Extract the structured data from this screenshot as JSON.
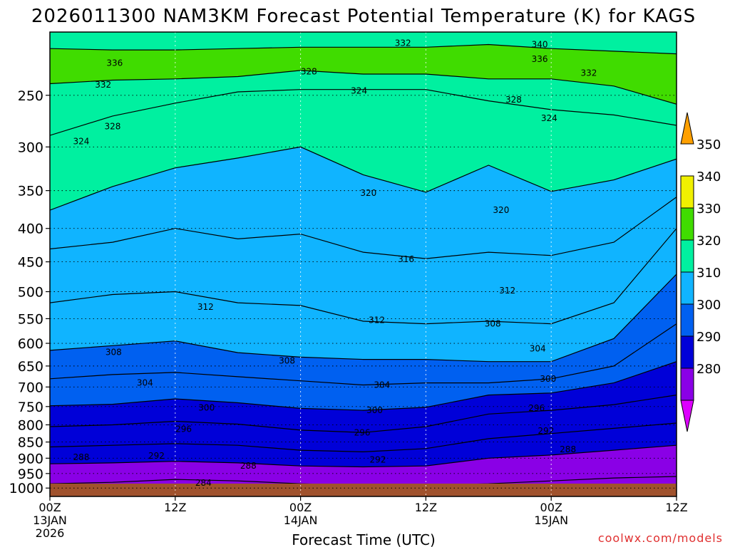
{
  "chart_data": {
    "type": "heatmap",
    "title": "2026011300 NAM3KM Forecast Potential Temperature (K) for KAGS",
    "xlabel": "Forecast Time (UTC)",
    "ylabel": "",
    "credit": "coolwx.com/models",
    "x_range_hours": [
      0,
      60
    ],
    "y_range_hpa": [
      1030,
      200
    ],
    "y_ticks": [
      {
        "p": 250,
        "label": "250"
      },
      {
        "p": 300,
        "label": "300"
      },
      {
        "p": 350,
        "label": "350"
      },
      {
        "p": 400,
        "label": "400"
      },
      {
        "p": 450,
        "label": "450"
      },
      {
        "p": 500,
        "label": "500"
      },
      {
        "p": 550,
        "label": "550"
      },
      {
        "p": 600,
        "label": "600"
      },
      {
        "p": 650,
        "label": "650"
      },
      {
        "p": 700,
        "label": "700"
      },
      {
        "p": 750,
        "label": "750"
      },
      {
        "p": 800,
        "label": "800"
      },
      {
        "p": 850,
        "label": "850"
      },
      {
        "p": 900,
        "label": "900"
      },
      {
        "p": 950,
        "label": "950"
      },
      {
        "p": 1000,
        "label": "1000"
      }
    ],
    "x_ticks": [
      {
        "h": 0,
        "time": "00Z",
        "date": "13JAN",
        "year": "2026"
      },
      {
        "h": 12,
        "time": "12Z",
        "date": "",
        "year": ""
      },
      {
        "h": 24,
        "time": "00Z",
        "date": "14JAN",
        "year": ""
      },
      {
        "h": 36,
        "time": "12Z",
        "date": "",
        "year": ""
      },
      {
        "h": 48,
        "time": "00Z",
        "date": "15JAN",
        "year": ""
      },
      {
        "h": 60,
        "time": "12Z",
        "date": "",
        "year": ""
      }
    ],
    "colorbar": {
      "labels": [
        "280",
        "290",
        "300",
        "310",
        "320",
        "330",
        "340",
        "350"
      ],
      "colors": [
        "#dd00ff",
        "#8a00e6",
        "#0000d8",
        "#0060f0",
        "#10b4ff",
        "#00f0a0",
        "#40dc00",
        "#f0f000",
        "#ffa000"
      ]
    },
    "ground_color": "#a0522d",
    "series": [
      {
        "theta": 332,
        "p": [
          [
            0,
            212
          ],
          [
            6,
            213
          ],
          [
            12,
            213
          ],
          [
            18,
            212
          ],
          [
            24,
            211
          ],
          [
            30,
            211
          ],
          [
            36,
            211
          ],
          [
            42,
            209
          ],
          [
            48,
            212
          ],
          [
            54,
            214
          ],
          [
            60,
            216
          ]
        ]
      },
      {
        "theta": 328,
        "p": [
          [
            0,
            240
          ],
          [
            6,
            237
          ],
          [
            12,
            236
          ],
          [
            18,
            234
          ],
          [
            24,
            229
          ],
          [
            30,
            232
          ],
          [
            36,
            232
          ],
          [
            42,
            236
          ],
          [
            48,
            236
          ],
          [
            54,
            242
          ],
          [
            60,
            258
          ]
        ]
      },
      {
        "theta": 324,
        "p": [
          [
            0,
            288
          ],
          [
            6,
            269
          ],
          [
            12,
            257
          ],
          [
            18,
            247
          ],
          [
            24,
            245
          ],
          [
            30,
            245
          ],
          [
            36,
            245
          ],
          [
            42,
            255
          ],
          [
            48,
            263
          ],
          [
            54,
            268
          ],
          [
            60,
            278
          ]
        ]
      },
      {
        "theta": 320,
        "p": [
          [
            0,
            375
          ],
          [
            6,
            345
          ],
          [
            12,
            323
          ],
          [
            18,
            312
          ],
          [
            24,
            300
          ],
          [
            30,
            331
          ],
          [
            36,
            352
          ],
          [
            42,
            320
          ],
          [
            48,
            351
          ],
          [
            54,
            337
          ],
          [
            60,
            313
          ]
        ]
      },
      {
        "theta": 316,
        "p": [
          [
            0,
            430
          ],
          [
            6,
            420
          ],
          [
            12,
            400
          ],
          [
            18,
            415
          ],
          [
            24,
            408
          ],
          [
            30,
            435
          ],
          [
            36,
            445
          ],
          [
            42,
            435
          ],
          [
            48,
            440
          ],
          [
            54,
            420
          ],
          [
            60,
            358
          ]
        ]
      },
      {
        "theta": 312,
        "p": [
          [
            0,
            520
          ],
          [
            6,
            505
          ],
          [
            12,
            500
          ],
          [
            18,
            520
          ],
          [
            24,
            525
          ],
          [
            30,
            555
          ],
          [
            36,
            560
          ],
          [
            42,
            555
          ],
          [
            48,
            560
          ],
          [
            54,
            520
          ],
          [
            60,
            400
          ]
        ]
      },
      {
        "theta": 308,
        "p": [
          [
            0,
            615
          ],
          [
            6,
            605
          ],
          [
            12,
            595
          ],
          [
            18,
            620
          ],
          [
            24,
            630
          ],
          [
            30,
            635
          ],
          [
            36,
            635
          ],
          [
            42,
            640
          ],
          [
            48,
            640
          ],
          [
            54,
            590
          ],
          [
            60,
            470
          ]
        ]
      },
      {
        "theta": 304,
        "p": [
          [
            0,
            680
          ],
          [
            6,
            670
          ],
          [
            12,
            665
          ],
          [
            18,
            675
          ],
          [
            24,
            685
          ],
          [
            30,
            695
          ],
          [
            36,
            690
          ],
          [
            42,
            690
          ],
          [
            48,
            680
          ],
          [
            54,
            650
          ],
          [
            60,
            560
          ]
        ]
      },
      {
        "theta": 300,
        "p": [
          [
            0,
            748
          ],
          [
            6,
            744
          ],
          [
            12,
            730
          ],
          [
            18,
            740
          ],
          [
            24,
            755
          ],
          [
            30,
            760
          ],
          [
            36,
            752
          ],
          [
            42,
            720
          ],
          [
            48,
            715
          ],
          [
            54,
            690
          ],
          [
            60,
            640
          ]
        ]
      },
      {
        "theta": 296,
        "p": [
          [
            0,
            805
          ],
          [
            6,
            800
          ],
          [
            12,
            790
          ],
          [
            18,
            798
          ],
          [
            24,
            815
          ],
          [
            30,
            822
          ],
          [
            36,
            805
          ],
          [
            42,
            770
          ],
          [
            48,
            760
          ],
          [
            54,
            745
          ],
          [
            60,
            720
          ]
        ]
      },
      {
        "theta": 292,
        "p": [
          [
            0,
            865
          ],
          [
            6,
            860
          ],
          [
            12,
            855
          ],
          [
            18,
            860
          ],
          [
            24,
            875
          ],
          [
            30,
            880
          ],
          [
            36,
            870
          ],
          [
            42,
            840
          ],
          [
            48,
            825
          ],
          [
            54,
            810
          ],
          [
            60,
            795
          ]
        ]
      },
      {
        "theta": 288,
        "p": [
          [
            0,
            918
          ],
          [
            6,
            915
          ],
          [
            12,
            910
          ],
          [
            18,
            915
          ],
          [
            24,
            925
          ],
          [
            30,
            928
          ],
          [
            36,
            925
          ],
          [
            42,
            900
          ],
          [
            48,
            890
          ],
          [
            54,
            875
          ],
          [
            60,
            860
          ]
        ]
      },
      {
        "theta": 284,
        "p": [
          [
            0,
            985
          ],
          [
            6,
            980
          ],
          [
            12,
            970
          ],
          [
            18,
            975
          ],
          [
            24,
            985
          ],
          [
            30,
            990
          ],
          [
            36,
            990
          ],
          [
            42,
            985
          ],
          [
            48,
            975
          ],
          [
            54,
            965
          ],
          [
            60,
            960
          ]
        ]
      }
    ],
    "contour_labels": [
      {
        "text": "336",
        "h": 6.2,
        "p": 223
      },
      {
        "text": "332",
        "h": 5.1,
        "p": 241
      },
      {
        "text": "332",
        "h": 33.8,
        "p": 208
      },
      {
        "text": "340",
        "h": 46.9,
        "p": 209
      },
      {
        "text": "336",
        "h": 46.9,
        "p": 220
      },
      {
        "text": "332",
        "h": 51.6,
        "p": 231
      },
      {
        "text": "328",
        "h": 24.8,
        "p": 230
      },
      {
        "text": "328",
        "h": 6.0,
        "p": 279
      },
      {
        "text": "328",
        "h": 44.4,
        "p": 254
      },
      {
        "text": "324",
        "h": 29.6,
        "p": 246
      },
      {
        "text": "324",
        "h": 47.8,
        "p": 271
      },
      {
        "text": "324",
        "h": 3.0,
        "p": 294
      },
      {
        "text": "320",
        "h": 30.5,
        "p": 353
      },
      {
        "text": "320",
        "h": 43.2,
        "p": 375
      },
      {
        "text": "316",
        "h": 34.1,
        "p": 446
      },
      {
        "text": "312",
        "h": 14.9,
        "p": 528
      },
      {
        "text": "312",
        "h": 31.3,
        "p": 553
      },
      {
        "text": "312",
        "h": 43.8,
        "p": 498
      },
      {
        "text": "308",
        "h": 6.1,
        "p": 619
      },
      {
        "text": "308",
        "h": 22.7,
        "p": 638
      },
      {
        "text": "308",
        "h": 42.4,
        "p": 560
      },
      {
        "text": "304",
        "h": 9.1,
        "p": 690
      },
      {
        "text": "304",
        "h": 31.8,
        "p": 695
      },
      {
        "text": "304",
        "h": 46.7,
        "p": 611
      },
      {
        "text": "300",
        "h": 15.0,
        "p": 753
      },
      {
        "text": "300",
        "h": 31.1,
        "p": 760
      },
      {
        "text": "300",
        "h": 47.7,
        "p": 680
      },
      {
        "text": "296",
        "h": 12.8,
        "p": 812
      },
      {
        "text": "296",
        "h": 29.9,
        "p": 822
      },
      {
        "text": "296",
        "h": 46.6,
        "p": 754
      },
      {
        "text": "292",
        "h": 10.2,
        "p": 892
      },
      {
        "text": "292",
        "h": 31.4,
        "p": 905
      },
      {
        "text": "292",
        "h": 47.5,
        "p": 817
      },
      {
        "text": "288",
        "h": 3.0,
        "p": 897
      },
      {
        "text": "288",
        "h": 19.0,
        "p": 924
      },
      {
        "text": "288",
        "h": 49.6,
        "p": 873
      },
      {
        "text": "284",
        "h": 14.7,
        "p": 982
      }
    ]
  }
}
